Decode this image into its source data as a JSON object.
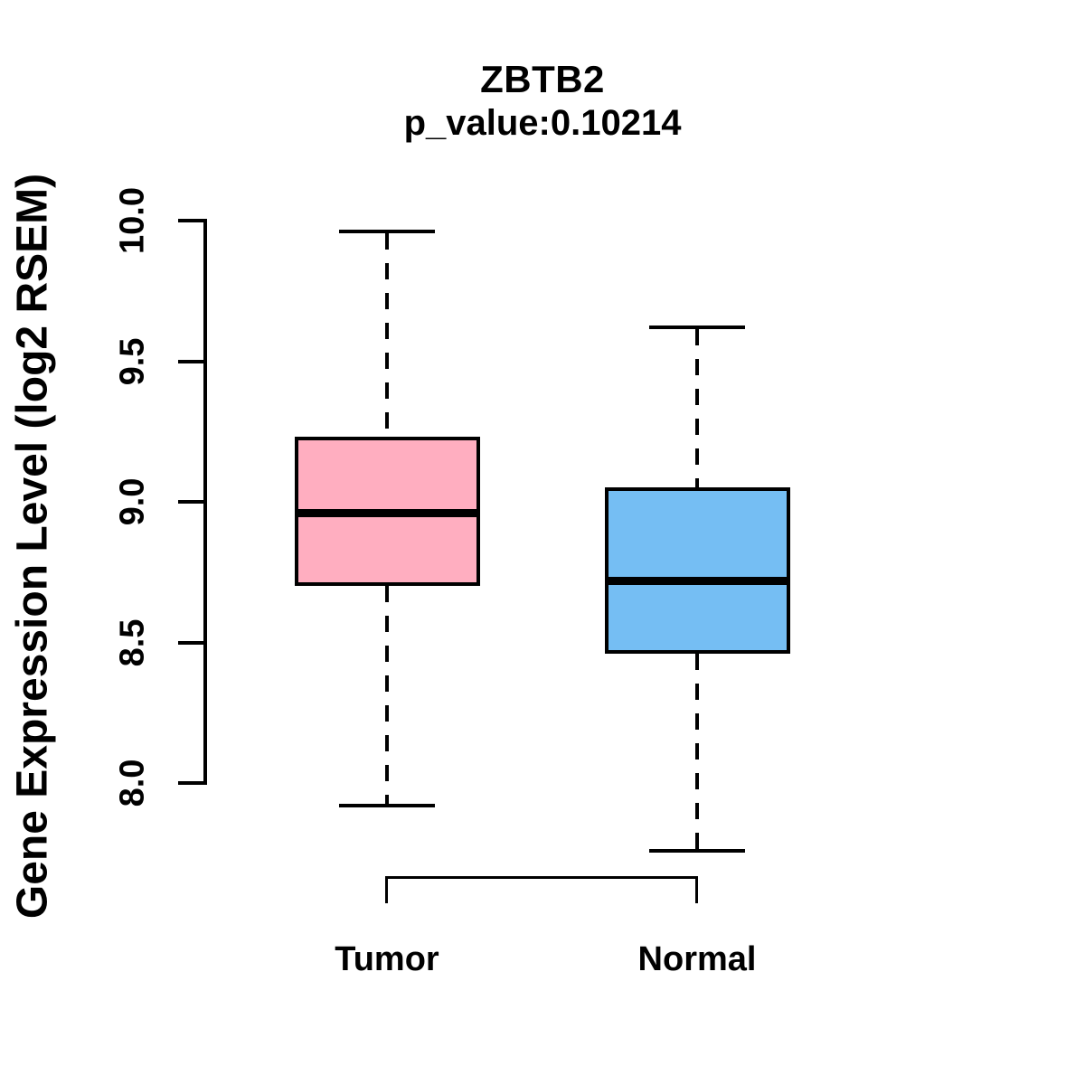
{
  "page": {
    "background": "#FFFFFF",
    "text_color": "#000000"
  },
  "chart_data": {
    "type": "boxplot",
    "title": "ZBTB2",
    "subtitle": "p_value:0.10214",
    "p_value": 0.10214,
    "gene": "ZBTB2",
    "ylabel": "Gene Expression Level (log2 RSEM)",
    "xlabel": "",
    "categories": [
      "Tumor",
      "Normal"
    ],
    "y_ticks": [
      8.0,
      8.5,
      9.0,
      9.5,
      10.0
    ],
    "y_tick_labels": [
      "8.0",
      "8.5",
      "9.0",
      "9.5",
      "10.0"
    ],
    "ylim": [
      7.6,
      10.05
    ],
    "grid": false,
    "legend": "none",
    "series": [
      {
        "name": "Tumor",
        "fill_color": "#FFAEC0",
        "whisker_low": 7.92,
        "q1": 8.7,
        "median": 8.96,
        "q3": 9.23,
        "whisker_high": 9.96
      },
      {
        "name": "Normal",
        "fill_color": "#75BEF3",
        "whisker_low": 7.76,
        "q1": 8.46,
        "median": 8.72,
        "q3": 9.05,
        "whisker_high": 9.62
      }
    ],
    "colors": {
      "box_border": "#000000",
      "median_line": "#000000",
      "axis": "#000000",
      "whisker": "#000000"
    }
  }
}
